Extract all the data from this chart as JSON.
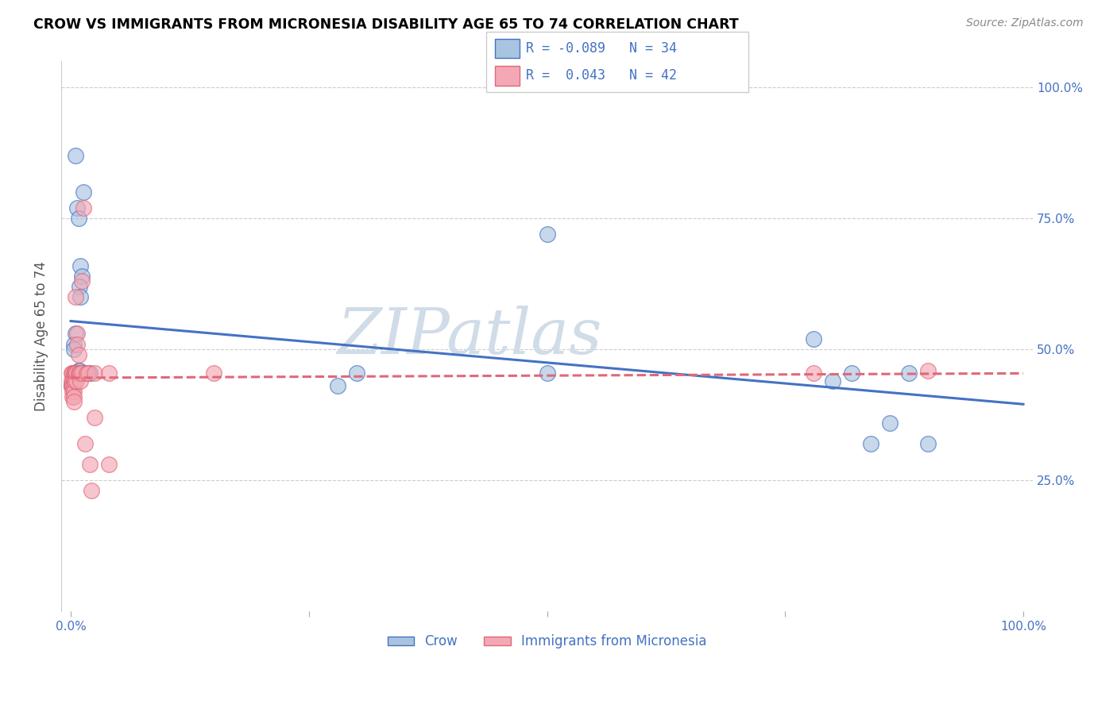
{
  "title": "CROW VS IMMIGRANTS FROM MICRONESIA DISABILITY AGE 65 TO 74 CORRELATION CHART",
  "source": "Source: ZipAtlas.com",
  "ylabel": "Disability Age 65 to 74",
  "crow_R": "-0.089",
  "crow_N": "34",
  "micronesia_R": "0.043",
  "micronesia_N": "42",
  "crow_color": "#a8c4e0",
  "micronesia_color": "#f4a7b5",
  "crow_line_color": "#4472c4",
  "micronesia_line_color": "#e06878",
  "legend_label_crow": "Crow",
  "legend_label_micronesia": "Immigrants from Micronesia",
  "crow_points": [
    [
      0.005,
      0.87
    ],
    [
      0.013,
      0.8
    ],
    [
      0.01,
      0.66
    ],
    [
      0.012,
      0.64
    ],
    [
      0.007,
      0.77
    ],
    [
      0.008,
      0.75
    ],
    [
      0.009,
      0.62
    ],
    [
      0.01,
      0.6
    ],
    [
      0.005,
      0.53
    ],
    [
      0.003,
      0.51
    ],
    [
      0.003,
      0.5
    ],
    [
      0.001,
      0.43
    ],
    [
      0.003,
      0.455
    ],
    [
      0.004,
      0.455
    ],
    [
      0.006,
      0.455
    ],
    [
      0.007,
      0.455
    ],
    [
      0.008,
      0.46
    ],
    [
      0.009,
      0.46
    ],
    [
      0.01,
      0.455
    ],
    [
      0.012,
      0.455
    ],
    [
      0.015,
      0.455
    ],
    [
      0.018,
      0.455
    ],
    [
      0.02,
      0.455
    ],
    [
      0.28,
      0.43
    ],
    [
      0.3,
      0.455
    ],
    [
      0.5,
      0.72
    ],
    [
      0.5,
      0.455
    ],
    [
      0.78,
      0.52
    ],
    [
      0.8,
      0.44
    ],
    [
      0.82,
      0.455
    ],
    [
      0.84,
      0.32
    ],
    [
      0.86,
      0.36
    ],
    [
      0.88,
      0.455
    ],
    [
      0.9,
      0.32
    ]
  ],
  "micronesia_points": [
    [
      0.001,
      0.455
    ],
    [
      0.001,
      0.44
    ],
    [
      0.001,
      0.43
    ],
    [
      0.002,
      0.455
    ],
    [
      0.002,
      0.44
    ],
    [
      0.002,
      0.43
    ],
    [
      0.002,
      0.42
    ],
    [
      0.002,
      0.41
    ],
    [
      0.003,
      0.455
    ],
    [
      0.003,
      0.44
    ],
    [
      0.003,
      0.43
    ],
    [
      0.003,
      0.42
    ],
    [
      0.003,
      0.41
    ],
    [
      0.003,
      0.4
    ],
    [
      0.004,
      0.455
    ],
    [
      0.004,
      0.44
    ],
    [
      0.005,
      0.6
    ],
    [
      0.005,
      0.455
    ],
    [
      0.006,
      0.455
    ],
    [
      0.006,
      0.44
    ],
    [
      0.007,
      0.53
    ],
    [
      0.007,
      0.51
    ],
    [
      0.008,
      0.49
    ],
    [
      0.008,
      0.455
    ],
    [
      0.009,
      0.455
    ],
    [
      0.01,
      0.455
    ],
    [
      0.01,
      0.44
    ],
    [
      0.012,
      0.63
    ],
    [
      0.012,
      0.455
    ],
    [
      0.013,
      0.77
    ],
    [
      0.015,
      0.32
    ],
    [
      0.017,
      0.455
    ],
    [
      0.018,
      0.455
    ],
    [
      0.02,
      0.28
    ],
    [
      0.022,
      0.23
    ],
    [
      0.025,
      0.37
    ],
    [
      0.025,
      0.455
    ],
    [
      0.04,
      0.455
    ],
    [
      0.04,
      0.28
    ],
    [
      0.15,
      0.455
    ],
    [
      0.78,
      0.455
    ],
    [
      0.9,
      0.46
    ]
  ],
  "background_color": "#ffffff",
  "grid_color": "#cccccc",
  "title_color": "#000000",
  "axis_label_color": "#4472c4",
  "legend_text_color": "#4472c4",
  "watermark_text": "ZIPatlas",
  "watermark_color": "#d0dce8"
}
